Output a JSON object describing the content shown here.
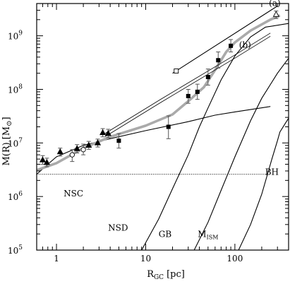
{
  "chart_data": {
    "type": "line",
    "xlabel": {
      "main": "R",
      "sub": "GC",
      "unit": "[pc]"
    },
    "ylabel": {
      "main": "M(R)",
      "unit_open": "[M",
      "unit_close": "]"
    },
    "xscale": "log",
    "yscale": "log",
    "xlim": [
      0.6,
      400
    ],
    "ylim": [
      100000,
      4000000000
    ],
    "x_ticks": [
      {
        "value": 1,
        "label": "1"
      },
      {
        "value": 10,
        "label": "10"
      },
      {
        "value": 100,
        "label": "100"
      }
    ],
    "y_ticks": [
      {
        "value": 100000,
        "base": "10",
        "exp": "5"
      },
      {
        "value": 1000000,
        "base": "10",
        "exp": "6"
      },
      {
        "value": 10000000,
        "base": "10",
        "exp": "7"
      },
      {
        "value": 100000000,
        "base": "10",
        "exp": "8"
      },
      {
        "value": 1000000000,
        "base": "10",
        "exp": "9"
      }
    ],
    "grid": false,
    "series": [
      {
        "name": "BH",
        "style": "dotted",
        "points": [
          [
            0.6,
            2600000
          ],
          [
            230,
            2600000
          ]
        ]
      },
      {
        "name": "NSC",
        "style": "solid",
        "points": [
          [
            0.6,
            2600000
          ],
          [
            0.8,
            4000000
          ],
          [
            1,
            5500000
          ],
          [
            2,
            9000000
          ],
          [
            4,
            12000000
          ],
          [
            10,
            17000000
          ],
          [
            30,
            25000000
          ],
          [
            60,
            33000000
          ],
          [
            100,
            38000000
          ],
          [
            250,
            48000000
          ]
        ]
      },
      {
        "name": "NSD",
        "style": "solid",
        "points": [
          [
            9,
            100000
          ],
          [
            14,
            380000
          ],
          [
            20,
            1400000
          ],
          [
            30,
            6000000
          ],
          [
            40,
            20000000
          ],
          [
            50,
            45000000
          ],
          [
            70,
            150000000
          ],
          [
            100,
            420000000
          ],
          [
            150,
            950000000
          ],
          [
            220,
            1450000000
          ],
          [
            400,
            1700000000
          ]
        ]
      },
      {
        "name": "GB",
        "style": "solid",
        "points": [
          [
            35,
            100000
          ],
          [
            50,
            330000
          ],
          [
            70,
            1300000
          ],
          [
            100,
            5500000
          ],
          [
            150,
            26000000
          ],
          [
            200,
            68000000
          ],
          [
            300,
            200000000
          ],
          [
            400,
            380000000
          ]
        ]
      },
      {
        "name": "M_ISM",
        "style": "solid",
        "points": [
          [
            110,
            100000
          ],
          [
            150,
            300000
          ],
          [
            200,
            1100000
          ],
          [
            260,
            5000000
          ],
          [
            300,
            11000000
          ],
          [
            320,
            16000000
          ],
          [
            360,
            22000000
          ],
          [
            400,
            29000000
          ]
        ]
      },
      {
        "name": "",
        "style": "thick-gray",
        "points": [
          [
            0.6,
            3100000
          ],
          [
            1,
            4200000
          ],
          [
            2,
            8000000
          ],
          [
            4,
            13000000
          ],
          [
            10,
            21000000
          ],
          [
            20,
            34000000
          ],
          [
            30,
            60000000
          ],
          [
            45,
            110000000
          ],
          [
            60,
            230000000
          ],
          [
            80,
            500000000
          ],
          [
            100,
            750000000
          ],
          [
            150,
            1250000000
          ],
          [
            250,
            2000000000
          ],
          [
            320,
            2400000000
          ]
        ]
      },
      {
        "name": "(a)",
        "style": "solid",
        "points": [
          [
            20,
            200000000
          ],
          [
            300,
            3600000000
          ]
        ]
      },
      {
        "name": "(b)",
        "style": "thin-pair",
        "points": [
          [
            3.5,
            14000000
          ],
          [
            15,
            62000000
          ],
          [
            100,
            410000000
          ],
          [
            250,
            1050000000
          ]
        ]
      }
    ],
    "data_points": {
      "triangles": [
        {
          "x": 0.7,
          "y": 4800000,
          "err_lo": 4000000,
          "err_hi": 5800000
        },
        {
          "x": 0.78,
          "y": 4300000,
          "err_lo": 3600000,
          "err_hi": 5200000
        },
        {
          "x": 1.1,
          "y": 6800000,
          "err_lo": 5700000,
          "err_hi": 8000000
        },
        {
          "x": 1.7,
          "y": 7800000,
          "err_lo": 6500000,
          "err_hi": 9300000
        },
        {
          "x": 2.3,
          "y": 9000000,
          "err_lo": 7600000,
          "err_hi": 10700000
        },
        {
          "x": 2.9,
          "y": 10000000,
          "err_lo": 8400000,
          "err_hi": 11800000
        },
        {
          "x": 3.3,
          "y": 15500000,
          "err_lo": 13000000,
          "err_hi": 18500000
        },
        {
          "x": 3.8,
          "y": 15000000,
          "err_lo": 12500000,
          "err_hi": 18000000
        }
      ],
      "open_triangles": [
        {
          "x": 290,
          "y": 2500000000,
          "err_lo": 2100000000,
          "err_hi": 2900000000
        }
      ],
      "squares": [
        {
          "x": 5,
          "y": 11000000,
          "err_lo": 8000000,
          "err_hi": 15000000
        },
        {
          "x": 18,
          "y": 20000000,
          "err_lo": 12000000,
          "err_hi": 32000000
        },
        {
          "x": 30,
          "y": 75000000,
          "err_lo": 55000000,
          "err_hi": 100000000
        },
        {
          "x": 38,
          "y": 90000000,
          "err_lo": 65000000,
          "err_hi": 125000000
        },
        {
          "x": 50,
          "y": 170000000,
          "err_lo": 120000000,
          "err_hi": 240000000
        },
        {
          "x": 65,
          "y": 350000000,
          "err_lo": 250000000,
          "err_hi": 500000000
        },
        {
          "x": 90,
          "y": 650000000,
          "err_lo": 500000000,
          "err_hi": 850000000
        }
      ],
      "open_squares": [
        {
          "x": 22,
          "y": 220000000
        }
      ],
      "open_circles": [
        {
          "x": 1.5,
          "y": 6000000,
          "err_lo": 4500000,
          "err_hi": 7500000
        },
        {
          "x": 2,
          "y": 7500000,
          "err_lo": 6000000,
          "err_hi": 9500000
        }
      ]
    },
    "annotations": [
      {
        "text": "(a)",
        "x": 280,
        "y": 3600000000
      },
      {
        "text": "(b)",
        "x": 130,
        "y": 600000000
      },
      {
        "text": "BH",
        "x": 260,
        "y": 2550000
      },
      {
        "text": "NSC",
        "x": 1.55,
        "y": 1000000
      },
      {
        "text": "NSD",
        "x": 4.9,
        "y": 230000
      },
      {
        "text": "GB",
        "x": 16.5,
        "y": 175000
      },
      {
        "text": "M",
        "sub": "ISM",
        "x": 50,
        "y": 175000
      }
    ]
  }
}
